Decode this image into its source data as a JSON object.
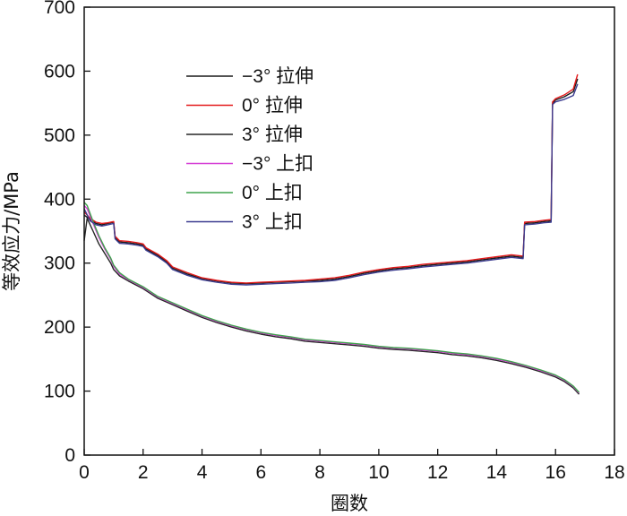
{
  "chart_data": {
    "type": "line",
    "title": "",
    "xlabel": "圈数",
    "ylabel": "等效应力/MPa",
    "xlim": [
      0,
      18
    ],
    "ylim": [
      0,
      700
    ],
    "xticks": [
      0,
      2,
      4,
      6,
      8,
      10,
      12,
      14,
      16,
      18
    ],
    "yticks": [
      0,
      100,
      200,
      300,
      400,
      500,
      600,
      700
    ],
    "grid": false,
    "legend_position": "upper-left",
    "series": [
      {
        "name": "−3° 拉伸",
        "color": "#1a1a1a",
        "x": [
          0,
          0.2,
          0.4,
          0.6,
          0.8,
          1.0,
          1.05,
          1.2,
          1.5,
          1.8,
          2.0,
          2.1,
          2.5,
          2.8,
          3.0,
          3.5,
          4.0,
          4.5,
          5.0,
          5.5,
          6.0,
          6.5,
          7.0,
          7.5,
          8.0,
          8.5,
          9.0,
          9.5,
          10.0,
          10.5,
          11.0,
          11.5,
          12.0,
          12.5,
          13.0,
          13.5,
          14.0,
          14.5,
          14.9,
          14.95,
          15.3,
          15.6,
          15.85,
          15.9,
          16.0,
          16.3,
          16.6,
          16.75
        ],
        "y": [
          375,
          368,
          362,
          360,
          362,
          364,
          340,
          333,
          332,
          330,
          328,
          322,
          312,
          302,
          292,
          283,
          276,
          272,
          269,
          268,
          269,
          270,
          271,
          272,
          273,
          275,
          279,
          284,
          288,
          291,
          293,
          296,
          298,
          300,
          302,
          305,
          308,
          311,
          309,
          362,
          363,
          365,
          366,
          550,
          555,
          560,
          568,
          588
        ]
      },
      {
        "name": "0° 拉伸",
        "color": "#e41a1c",
        "x": [
          0,
          0.2,
          0.4,
          0.6,
          0.8,
          1.0,
          1.05,
          1.2,
          1.5,
          1.8,
          2.0,
          2.1,
          2.5,
          2.8,
          3.0,
          3.5,
          4.0,
          4.5,
          5.0,
          5.5,
          6.0,
          6.5,
          7.0,
          7.5,
          8.0,
          8.5,
          9.0,
          9.5,
          10.0,
          10.5,
          11.0,
          11.5,
          12.0,
          12.5,
          13.0,
          13.5,
          14.0,
          14.5,
          14.9,
          14.95,
          15.3,
          15.6,
          15.85,
          15.9,
          16.0,
          16.3,
          16.6,
          16.75
        ],
        "y": [
          380,
          370,
          364,
          362,
          363,
          365,
          342,
          335,
          334,
          332,
          330,
          324,
          314,
          304,
          294,
          285,
          277,
          273,
          270,
          269,
          270,
          271,
          272,
          273,
          275,
          277,
          281,
          286,
          290,
          293,
          295,
          298,
          300,
          302,
          304,
          307,
          310,
          313,
          311,
          364,
          365,
          367,
          368,
          552,
          557,
          563,
          572,
          595
        ]
      },
      {
        "name": "3° 拉伸",
        "color": "#262626",
        "x": [
          0,
          0.1,
          0.3,
          0.5,
          0.7,
          0.9,
          1.0,
          1.2,
          1.5,
          2.0,
          2.5,
          3.0,
          3.5,
          4.0,
          4.5,
          5.0,
          5.5,
          6.0,
          6.5,
          7.0,
          7.5,
          8.0,
          8.5,
          9.0,
          9.5,
          10.0,
          10.5,
          11.0,
          11.5,
          12.0,
          12.5,
          13.0,
          13.5,
          14.0,
          14.5,
          15.0,
          15.5,
          16.0,
          16.3,
          16.6,
          16.8
        ],
        "y": [
          335,
          370,
          350,
          330,
          315,
          300,
          290,
          280,
          272,
          260,
          245,
          235,
          225,
          215,
          207,
          200,
          194,
          189,
          185,
          182,
          178,
          176,
          174,
          172,
          170,
          167,
          165,
          164,
          162,
          160,
          157,
          155,
          152,
          148,
          143,
          137,
          130,
          122,
          115,
          105,
          95
        ]
      },
      {
        "name": "−3° 上扣",
        "color": "#d63fd6",
        "x": [
          0,
          0.1,
          0.3,
          0.5,
          0.7,
          0.9,
          1.0,
          1.2,
          1.5,
          2.0,
          2.5,
          3.0,
          3.5,
          4.0,
          4.5,
          5.0,
          5.5,
          6.0,
          6.5,
          7.0,
          7.5,
          8.0,
          8.5,
          9.0,
          9.5,
          10.0,
          10.5,
          11.0,
          11.5,
          12.0,
          12.5,
          13.0,
          13.5,
          14.0,
          14.5,
          15.0,
          15.5,
          16.0,
          16.3,
          16.6,
          16.8
        ],
        "y": [
          390,
          385,
          362,
          340,
          322,
          306,
          295,
          283,
          274,
          262,
          247,
          237,
          227,
          217,
          209,
          202,
          196,
          191,
          187,
          184,
          180,
          178,
          176,
          174,
          172,
          169,
          167,
          166,
          164,
          162,
          159,
          157,
          154,
          150,
          145,
          139,
          132,
          124,
          117,
          107,
          97
        ]
      },
      {
        "name": "0° 上扣",
        "color": "#3fa34d",
        "x": [
          0,
          0.1,
          0.3,
          0.5,
          0.7,
          0.9,
          1.0,
          1.2,
          1.5,
          2.0,
          2.5,
          3.0,
          3.5,
          4.0,
          4.5,
          5.0,
          5.5,
          6.0,
          6.5,
          7.0,
          7.5,
          8.0,
          8.5,
          9.0,
          9.5,
          10.0,
          10.5,
          11.0,
          11.5,
          12.0,
          12.5,
          13.0,
          13.5,
          14.0,
          14.5,
          15.0,
          15.5,
          16.0,
          16.3,
          16.6,
          16.8
        ],
        "y": [
          395,
          390,
          365,
          343,
          324,
          308,
          297,
          285,
          275,
          263,
          248,
          238,
          228,
          218,
          210,
          203,
          197,
          192,
          188,
          185,
          181,
          179,
          177,
          175,
          173,
          170,
          168,
          167,
          165,
          163,
          160,
          158,
          155,
          151,
          146,
          140,
          133,
          125,
          118,
          108,
          98
        ]
      },
      {
        "name": "3° 上扣",
        "color": "#3b3b8f",
        "x": [
          0,
          0.2,
          0.4,
          0.6,
          0.8,
          1.0,
          1.05,
          1.2,
          1.5,
          1.8,
          2.0,
          2.1,
          2.5,
          2.8,
          3.0,
          3.5,
          4.0,
          4.5,
          5.0,
          5.5,
          6.0,
          6.5,
          7.0,
          7.5,
          8.0,
          8.5,
          9.0,
          9.5,
          10.0,
          10.5,
          11.0,
          11.5,
          12.0,
          12.5,
          13.0,
          13.5,
          14.0,
          14.5,
          14.9,
          14.95,
          15.3,
          15.6,
          15.85,
          15.9,
          16.0,
          16.3,
          16.6,
          16.75
        ],
        "y": [
          385,
          366,
          360,
          358,
          360,
          362,
          338,
          331,
          330,
          328,
          326,
          320,
          310,
          300,
          290,
          281,
          274,
          270,
          267,
          266,
          267,
          268,
          269,
          270,
          271,
          273,
          277,
          282,
          286,
          289,
          291,
          294,
          296,
          298,
          300,
          303,
          306,
          309,
          307,
          360,
          361,
          363,
          364,
          548,
          552,
          556,
          562,
          580
        ]
      }
    ]
  }
}
